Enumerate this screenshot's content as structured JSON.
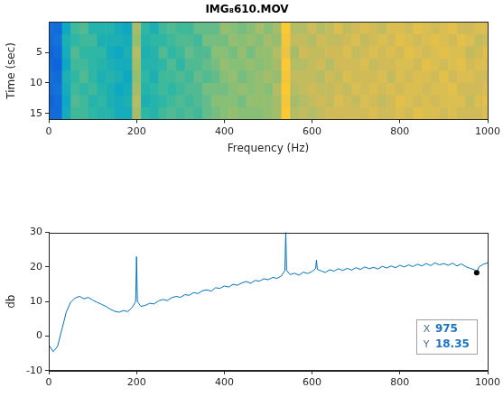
{
  "chart_data": [
    {
      "type": "heatmap",
      "title": "IMG₈610.MOV",
      "x_label": "Frequency (Hz)",
      "y_label": "Time (sec)",
      "xlim": [
        0,
        1000
      ],
      "xticks": [
        0,
        200,
        400,
        600,
        800,
        1000
      ],
      "ylim": [
        16,
        0
      ],
      "yticks": [
        5,
        10,
        15
      ],
      "grid": false,
      "clim": [
        -10,
        30
      ],
      "x": [
        0,
        20,
        40,
        60,
        80,
        100,
        120,
        140,
        160,
        180,
        200,
        220,
        240,
        260,
        280,
        300,
        320,
        340,
        360,
        380,
        400,
        420,
        440,
        460,
        480,
        500,
        520,
        540,
        560,
        580,
        600,
        620,
        640,
        660,
        680,
        700,
        720,
        740,
        760,
        780,
        800,
        820,
        840,
        860,
        880,
        900,
        920,
        940,
        960,
        980,
        1000
      ],
      "y": [
        1,
        3,
        5,
        7,
        9,
        11,
        13,
        15
      ],
      "cells": [
        [
          -2,
          -3,
          6,
          11,
          12,
          9,
          9,
          9,
          7,
          6,
          17,
          10,
          8,
          11,
          12,
          11,
          11,
          13,
          13,
          13,
          16,
          15,
          14,
          15,
          17,
          15,
          17,
          25,
          18,
          18,
          20,
          18,
          19,
          21,
          19,
          20,
          21,
          20,
          19,
          21,
          21,
          20,
          22,
          21,
          20,
          21,
          22,
          20,
          20,
          21,
          21
        ],
        [
          -3,
          -2,
          8,
          10,
          11,
          11,
          8,
          8,
          8,
          7,
          16,
          9,
          10,
          10,
          11,
          12,
          12,
          11,
          14,
          14,
          14,
          16,
          15,
          16,
          15,
          17,
          16,
          24,
          19,
          19,
          18,
          20,
          19,
          19,
          20,
          21,
          19,
          20,
          21,
          20,
          22,
          21,
          20,
          21,
          22,
          21,
          20,
          22,
          21,
          19,
          20
        ],
        [
          -4,
          -3,
          7,
          12,
          10,
          10,
          10,
          7,
          6,
          8,
          18,
          8,
          9,
          12,
          10,
          11,
          13,
          12,
          12,
          15,
          15,
          14,
          16,
          14,
          16,
          16,
          18,
          23,
          17,
          20,
          19,
          19,
          20,
          20,
          21,
          19,
          20,
          21,
          20,
          21,
          20,
          22,
          21,
          20,
          21,
          22,
          21,
          21,
          19,
          20,
          22
        ],
        [
          -3,
          -4,
          6,
          11,
          11,
          10,
          9,
          8,
          7,
          7,
          17,
          9,
          9,
          10,
          12,
          10,
          12,
          12,
          13,
          14,
          16,
          15,
          15,
          16,
          15,
          16,
          17,
          25,
          18,
          18,
          19,
          20,
          18,
          20,
          20,
          20,
          21,
          19,
          20,
          20,
          21,
          21,
          20,
          22,
          21,
          20,
          21,
          22,
          20,
          21,
          21
        ],
        [
          -2,
          -3,
          8,
          10,
          12,
          10,
          8,
          9,
          8,
          6,
          16,
          10,
          8,
          11,
          11,
          12,
          11,
          13,
          12,
          13,
          15,
          16,
          14,
          15,
          16,
          17,
          16,
          24,
          19,
          19,
          19,
          18,
          20,
          19,
          21,
          20,
          20,
          20,
          21,
          19,
          21,
          20,
          21,
          21,
          20,
          22,
          20,
          21,
          21,
          20,
          20
        ],
        [
          -3,
          -2,
          7,
          11,
          10,
          11,
          9,
          8,
          6,
          7,
          17,
          9,
          10,
          11,
          10,
          11,
          12,
          12,
          14,
          14,
          14,
          15,
          16,
          15,
          16,
          15,
          18,
          25,
          18,
          19,
          20,
          19,
          19,
          20,
          19,
          21,
          20,
          21,
          20,
          21,
          20,
          21,
          21,
          20,
          21,
          21,
          22,
          20,
          20,
          20,
          21
        ],
        [
          -4,
          -3,
          6,
          12,
          11,
          9,
          10,
          8,
          7,
          8,
          18,
          8,
          9,
          10,
          11,
          12,
          11,
          12,
          13,
          15,
          15,
          15,
          14,
          16,
          16,
          16,
          17,
          24,
          17,
          18,
          19,
          20,
          19,
          21,
          20,
          19,
          21,
          20,
          19,
          20,
          22,
          21,
          20,
          21,
          20,
          21,
          21,
          21,
          19,
          21,
          22
        ],
        [
          -3,
          -3,
          7,
          11,
          11,
          10,
          9,
          9,
          7,
          7,
          17,
          10,
          9,
          11,
          12,
          11,
          12,
          11,
          13,
          14,
          15,
          16,
          15,
          15,
          15,
          16,
          17,
          25,
          18,
          19,
          18,
          19,
          20,
          20,
          20,
          20,
          20,
          21,
          20,
          20,
          21,
          20,
          22,
          21,
          21,
          20,
          21,
          20,
          20,
          20,
          21
        ]
      ]
    },
    {
      "type": "line",
      "y_label": "db",
      "xlim": [
        0,
        1000
      ],
      "xticks": [
        0,
        200,
        400,
        600,
        800,
        1000
      ],
      "ylim": [
        -10,
        30
      ],
      "yticks": [
        -10,
        0,
        10,
        20,
        30
      ],
      "grid": false,
      "color": "#0072bd",
      "x": [
        0,
        10,
        20,
        30,
        40,
        50,
        60,
        70,
        80,
        90,
        100,
        110,
        120,
        130,
        140,
        150,
        160,
        170,
        180,
        190,
        198,
        200,
        202,
        210,
        220,
        230,
        240,
        250,
        260,
        270,
        280,
        290,
        300,
        310,
        320,
        330,
        340,
        350,
        360,
        370,
        380,
        390,
        400,
        410,
        420,
        430,
        440,
        450,
        460,
        470,
        480,
        490,
        500,
        510,
        520,
        530,
        538,
        540,
        542,
        550,
        560,
        570,
        580,
        590,
        600,
        608,
        610,
        612,
        620,
        630,
        640,
        650,
        660,
        670,
        680,
        690,
        700,
        710,
        720,
        730,
        740,
        750,
        760,
        770,
        780,
        790,
        800,
        810,
        820,
        830,
        840,
        850,
        860,
        870,
        880,
        890,
        900,
        910,
        920,
        930,
        940,
        950,
        960,
        970,
        975,
        980,
        990,
        1000
      ],
      "values": [
        -2.5,
        -4.5,
        -3,
        2,
        7,
        9.8,
        11,
        11.5,
        10.8,
        11.2,
        10.4,
        9.8,
        9.2,
        8.6,
        7.8,
        7.2,
        6.9,
        7.4,
        7.1,
        8.3,
        10,
        23,
        10,
        8.6,
        8.9,
        9.5,
        9.3,
        10.2,
        10.6,
        10.3,
        11.1,
        11.5,
        11.2,
        12,
        11.8,
        12.6,
        12.3,
        13.1,
        13.4,
        13,
        14,
        13.8,
        14.5,
        14.2,
        15,
        14.7,
        15.4,
        15.8,
        15.3,
        16.1,
        15.9,
        16.6,
        16.3,
        17,
        16.7,
        17.4,
        19,
        30,
        19,
        17.8,
        18.2,
        17.6,
        18.5,
        18.1,
        18.7,
        19.5,
        22,
        19.3,
        18.9,
        18.4,
        19.2,
        18.8,
        19.5,
        19,
        19.6,
        19.1,
        19.8,
        19.3,
        20,
        19.5,
        19.9,
        19.4,
        20.2,
        19.7,
        20.3,
        19.8,
        20.5,
        20,
        20.6,
        20.1,
        20.8,
        20.3,
        21,
        20.4,
        21.2,
        20.6,
        21,
        20.5,
        21.1,
        20.3,
        20.9,
        20.1,
        19.6,
        19.2,
        18.35,
        20,
        20.8,
        21.2
      ],
      "annotations": [
        {
          "x": 975,
          "y": 18.35,
          "x_label": "X",
          "y_label": "Y"
        }
      ]
    }
  ]
}
